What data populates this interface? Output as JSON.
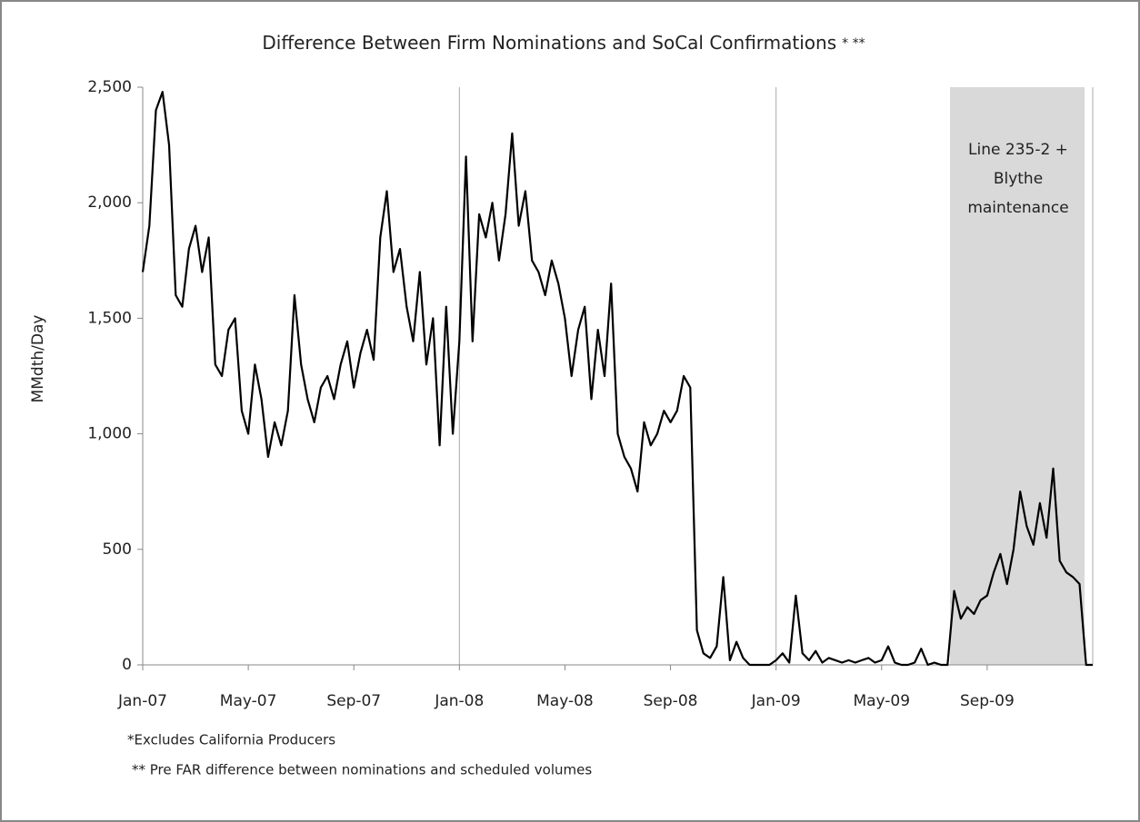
{
  "chart_data": {
    "type": "line",
    "title": "Difference Between Firm Nominations and SoCal Confirmations",
    "title_note": "*  **",
    "y_label": "MMdth/Day",
    "annotation": [
      "Line 235-2  +",
      "Blythe",
      "maintenance"
    ],
    "footnotes": [
      "*Excludes California Producers",
      "**  Pre FAR difference between nominations and scheduled volumes"
    ],
    "categories": [
      "Jan-07",
      null,
      null,
      null,
      null,
      null,
      null,
      null,
      null,
      null,
      null,
      null,
      null,
      null,
      null,
      null,
      "May-07",
      null,
      null,
      null,
      null,
      null,
      null,
      null,
      null,
      null,
      null,
      null,
      null,
      null,
      null,
      null,
      "Sep-07",
      null,
      null,
      null,
      null,
      null,
      null,
      null,
      null,
      null,
      null,
      null,
      null,
      null,
      null,
      null,
      "Jan-08",
      null,
      null,
      null,
      null,
      null,
      null,
      null,
      null,
      null,
      null,
      null,
      null,
      null,
      null,
      null,
      "May-08",
      null,
      null,
      null,
      null,
      null,
      null,
      null,
      null,
      null,
      null,
      null,
      null,
      null,
      null,
      null,
      "Sep-08",
      null,
      null,
      null,
      null,
      null,
      null,
      null,
      null,
      null,
      null,
      null,
      null,
      null,
      null,
      null,
      "Jan-09",
      null,
      null,
      null,
      null,
      null,
      null,
      null,
      null,
      null,
      null,
      null,
      null,
      null,
      null,
      null,
      "May-09",
      null,
      null,
      null,
      null,
      null,
      null,
      null,
      null,
      null,
      null,
      null,
      null,
      null,
      null,
      null,
      "Sep-09",
      null,
      null,
      null,
      null,
      null,
      null,
      null,
      null,
      null,
      null,
      null,
      null,
      null,
      null,
      null,
      null
    ],
    "series": [
      {
        "name": "Difference",
        "color": "#000000",
        "values": [
          1700,
          1900,
          2400,
          2480,
          2250,
          1600,
          1550,
          1800,
          1900,
          1700,
          1850,
          1300,
          1250,
          1450,
          1500,
          1100,
          1000,
          1300,
          1150,
          900,
          1050,
          950,
          1100,
          1600,
          1300,
          1150,
          1050,
          1200,
          1250,
          1150,
          1300,
          1400,
          1200,
          1350,
          1450,
          1320,
          1850,
          2050,
          1700,
          1800,
          1550,
          1400,
          1700,
          1300,
          1500,
          950,
          1550,
          1000,
          1400,
          2200,
          1400,
          1950,
          1850,
          2000,
          1750,
          1950,
          2300,
          1900,
          2050,
          1750,
          1700,
          1600,
          1750,
          1650,
          1500,
          1250,
          1450,
          1550,
          1150,
          1450,
          1250,
          1650,
          1000,
          900,
          850,
          750,
          1050,
          950,
          1000,
          1100,
          1050,
          1100,
          1250,
          1200,
          150,
          50,
          30,
          80,
          380,
          20,
          100,
          30,
          0,
          0,
          0,
          0,
          20,
          50,
          10,
          300,
          50,
          20,
          60,
          10,
          30,
          20,
          10,
          20,
          10,
          20,
          30,
          10,
          20,
          80,
          10,
          0,
          0,
          10,
          70,
          0,
          10,
          0,
          0,
          320,
          200,
          250,
          220,
          280,
          300,
          400,
          480,
          350,
          500,
          750,
          600,
          520,
          700,
          550,
          850,
          450,
          400,
          380,
          350,
          0,
          0
        ]
      }
    ],
    "ylim": [
      0,
      2500
    ],
    "yticks": [
      0,
      500,
      {
        "value": 1000,
        "label": "1,000"
      },
      {
        "value": 1500,
        "label": "1,500"
      },
      {
        "value": 2000,
        "label": "2,000"
      },
      {
        "value": 2500,
        "label": "2,500"
      }
    ]
  }
}
